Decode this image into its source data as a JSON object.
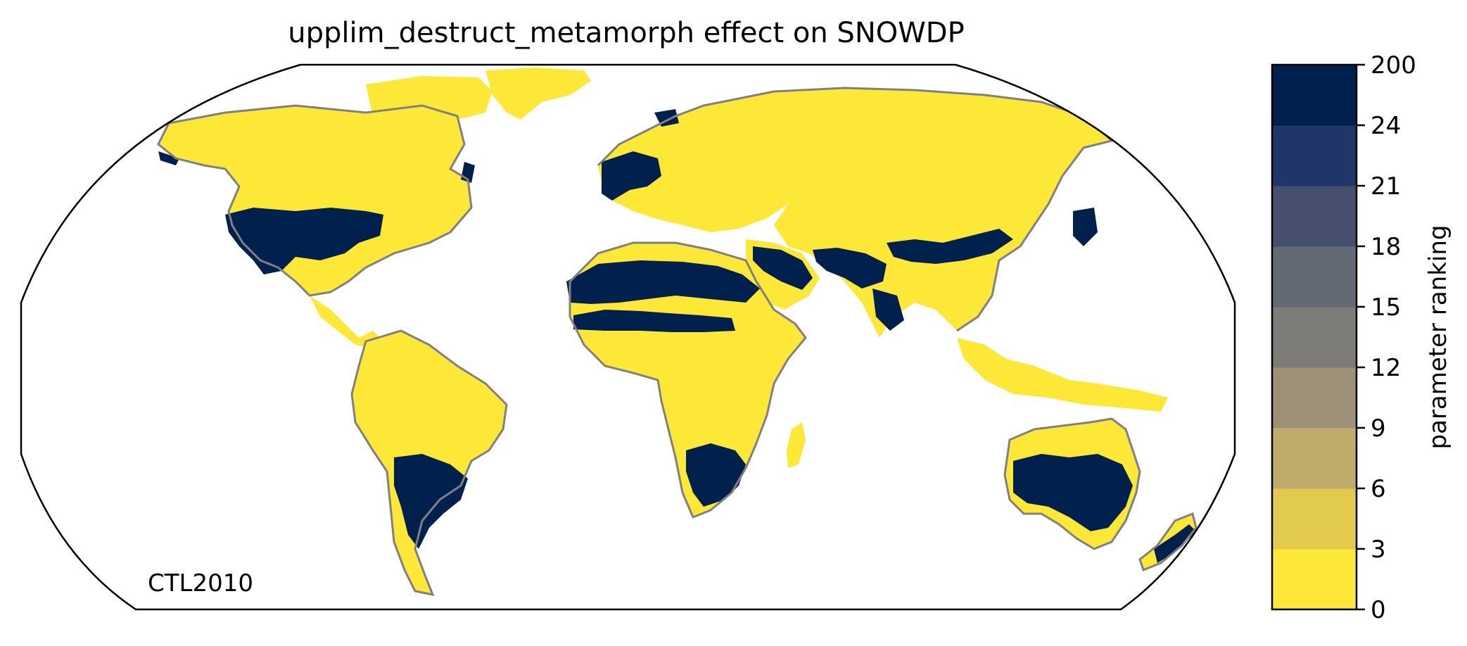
{
  "title": "upplim_destruct_metamorph effect on SNOWDP",
  "run_label": "CTL2010",
  "colorbar": {
    "label": "parameter ranking",
    "ticks": [
      "0",
      "3",
      "6",
      "9",
      "12",
      "15",
      "18",
      "21",
      "24",
      "200"
    ],
    "colors": [
      "#FDE737",
      "#E1CA4E",
      "#BFAC6A",
      "#9C9177",
      "#7E7C78",
      "#646A73",
      "#46506E",
      "#203669",
      "#00214E"
    ]
  },
  "map": {
    "projection": "robinson",
    "ocean_color": "#ffffff",
    "land_low_color": "#FDE737",
    "land_high_color": "#00214E",
    "coastline_color": "#808080"
  }
}
